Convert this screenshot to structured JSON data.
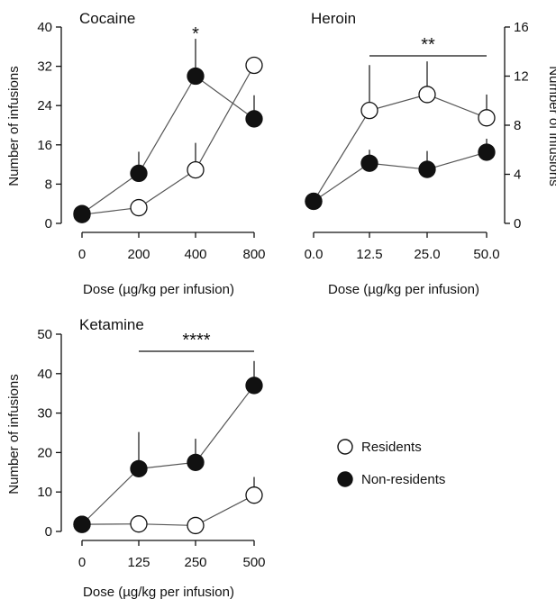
{
  "legend": [
    {
      "name": "Residents",
      "fill": "#ffffff"
    },
    {
      "name": "Non-residents",
      "fill": "#111111"
    }
  ],
  "colors": {
    "line": "#555555",
    "marker_stroke": "#111111",
    "filled": "#111111",
    "open": "#ffffff"
  },
  "chart_data": [
    {
      "type": "line",
      "title": "Cocaine",
      "xlabel": "Dose (µg/kg per infusion)",
      "ylabel": "Number of infusions",
      "y_axis_side": "left",
      "categories": [
        "0",
        "200",
        "400",
        "800"
      ],
      "ylim": [
        0,
        40
      ],
      "yticks": [
        "0",
        "8",
        "16",
        "24",
        "32",
        "40"
      ],
      "series": [
        {
          "name": "Residents",
          "values": [
            1.8,
            3.2,
            10.9,
            32.2
          ],
          "error": [
            0,
            0,
            5.5,
            0
          ]
        },
        {
          "name": "Non-residents",
          "values": [
            2.0,
            10.2,
            30.0,
            21.3
          ],
          "error": [
            0,
            4.4,
            7.6,
            4.8
          ]
        }
      ],
      "significance": [
        {
          "label": "*",
          "category": "400"
        }
      ]
    },
    {
      "type": "line",
      "title": "Heroin",
      "xlabel": "Dose (µg/kg per infusion)",
      "ylabel": "Number of infusions",
      "y_axis_side": "right",
      "categories": [
        "0.0",
        "12.5",
        "25.0",
        "50.0"
      ],
      "ylim": [
        0,
        16
      ],
      "yticks": [
        "0",
        "4",
        "8",
        "12",
        "16"
      ],
      "series": [
        {
          "name": "Residents",
          "values": [
            1.8,
            9.2,
            10.5,
            8.6
          ],
          "error": [
            0,
            3.7,
            2.7,
            1.9
          ]
        },
        {
          "name": "Non-residents",
          "values": [
            1.8,
            4.9,
            4.4,
            5.8
          ],
          "error": [
            0,
            1.1,
            1.5,
            1.1
          ]
        }
      ],
      "significance": [
        {
          "label": "**",
          "from": "12.5",
          "to": "50.0"
        }
      ]
    },
    {
      "type": "line",
      "title": "Ketamine",
      "xlabel": "Dose (µg/kg per infusion)",
      "ylabel": "Number of infusions",
      "y_axis_side": "left",
      "categories": [
        "0",
        "125",
        "250",
        "500"
      ],
      "ylim": [
        0,
        50
      ],
      "yticks": [
        "0",
        "10",
        "20",
        "30",
        "40",
        "50"
      ],
      "series": [
        {
          "name": "Residents",
          "values": [
            1.8,
            1.9,
            1.5,
            9.2
          ],
          "error": [
            0,
            0,
            0,
            4.6
          ]
        },
        {
          "name": "Non-residents",
          "values": [
            1.8,
            15.9,
            17.5,
            37.0
          ],
          "error": [
            0,
            9.3,
            6.0,
            6.2
          ]
        }
      ],
      "significance": [
        {
          "label": "****",
          "from": "125",
          "to": "500"
        }
      ]
    }
  ]
}
